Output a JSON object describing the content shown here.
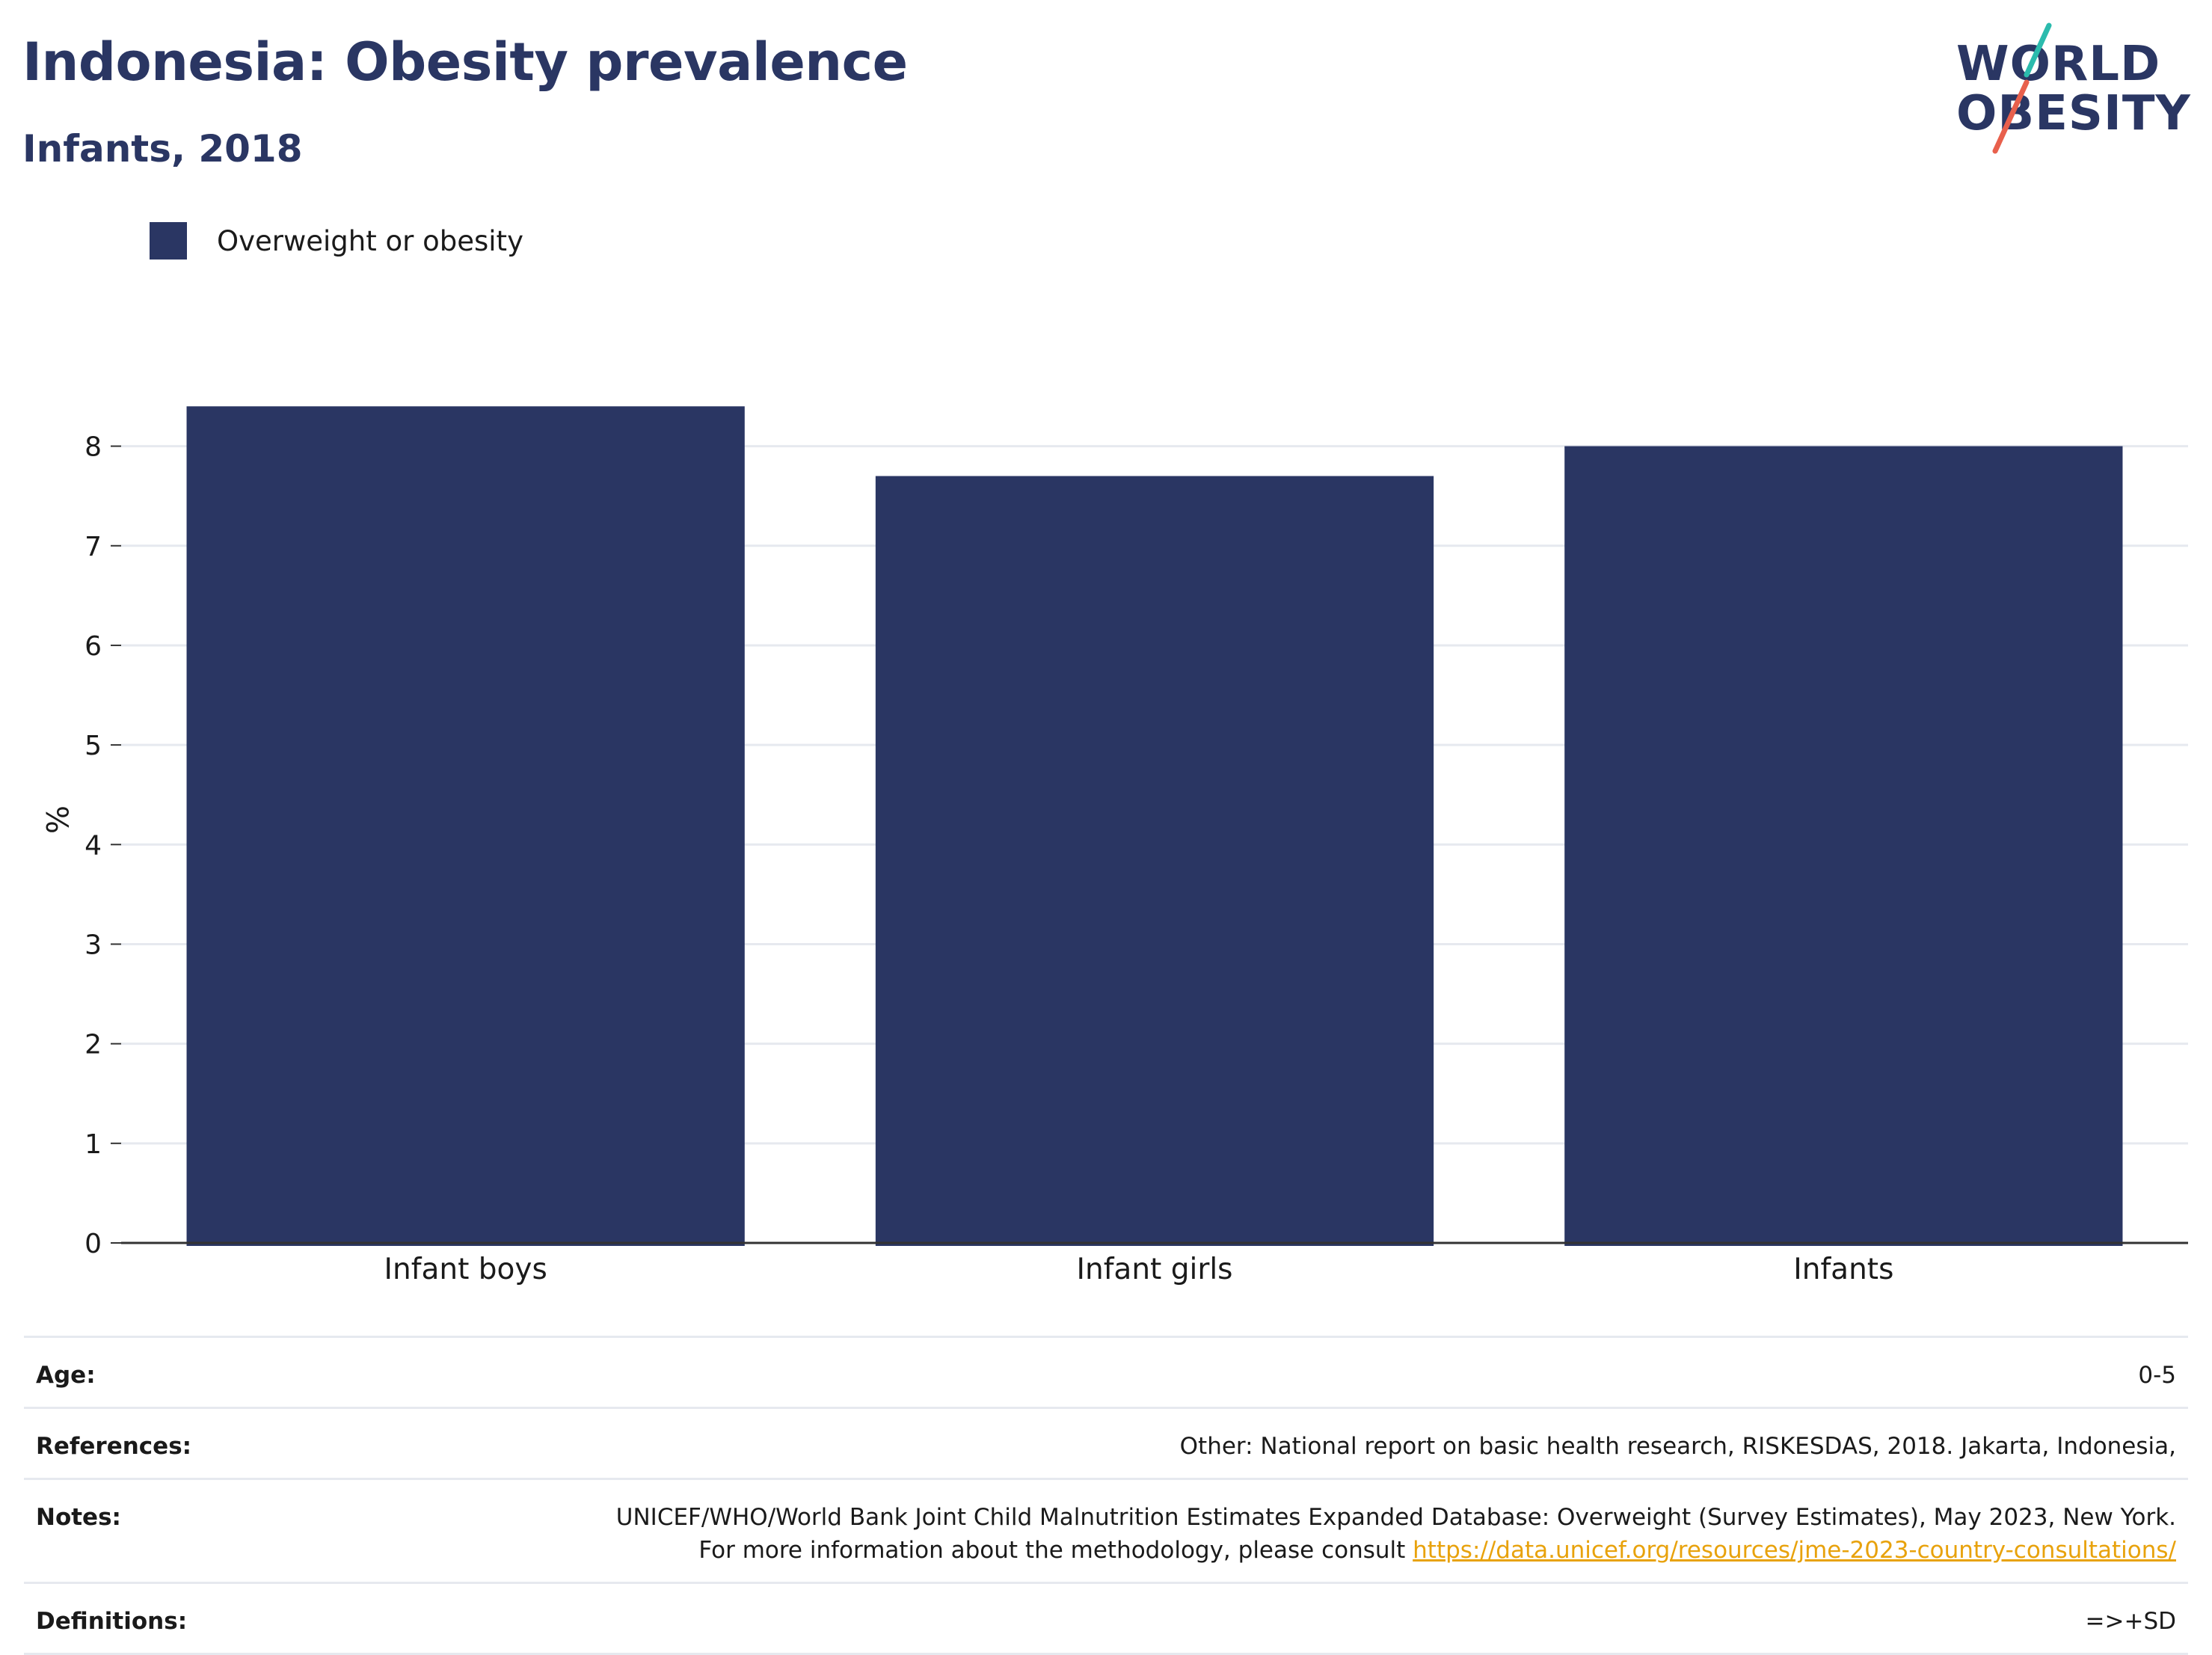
{
  "header": {
    "title": "Indonesia: Obesity prevalence",
    "subtitle": "Infants, 2018"
  },
  "logo": {
    "line1": "WORLD",
    "line2": "OBESITY",
    "text_color": "#2a3663",
    "slash_colors": [
      "#2bbbad",
      "#e8604c"
    ]
  },
  "legend": {
    "label": "Overweight or obesity",
    "color": "#2a3663"
  },
  "chart_data": {
    "type": "bar",
    "categories": [
      "Infant boys",
      "Infant girls",
      "Infants"
    ],
    "series": [
      {
        "name": "Overweight or obesity",
        "values": [
          8.4,
          7.7,
          8.0
        ],
        "color": "#2a3663"
      }
    ],
    "ylabel": "%",
    "ylim": [
      0,
      8.5
    ],
    "yticks": [
      0,
      1,
      2,
      3,
      4,
      5,
      6,
      7,
      8
    ],
    "grid": true,
    "legend_position": "top-left"
  },
  "meta": [
    {
      "label": "Age:",
      "value": "0-5"
    },
    {
      "label": "References:",
      "value": "Other: National report on basic health research, RISKESDAS, 2018. Jakarta, Indonesia,"
    },
    {
      "label": "Notes:",
      "value": "UNICEF/WHO/World Bank Joint Child Malnutrition Estimates Expanded Database: Overweight (Survey Estimates), May 2023, New York. For more information about the methodology, please consult ",
      "link": "https://data.unicef.org/resources/jme-2023-country-consultations/"
    },
    {
      "label": "Definitions:",
      "value": "=>+SD"
    }
  ]
}
